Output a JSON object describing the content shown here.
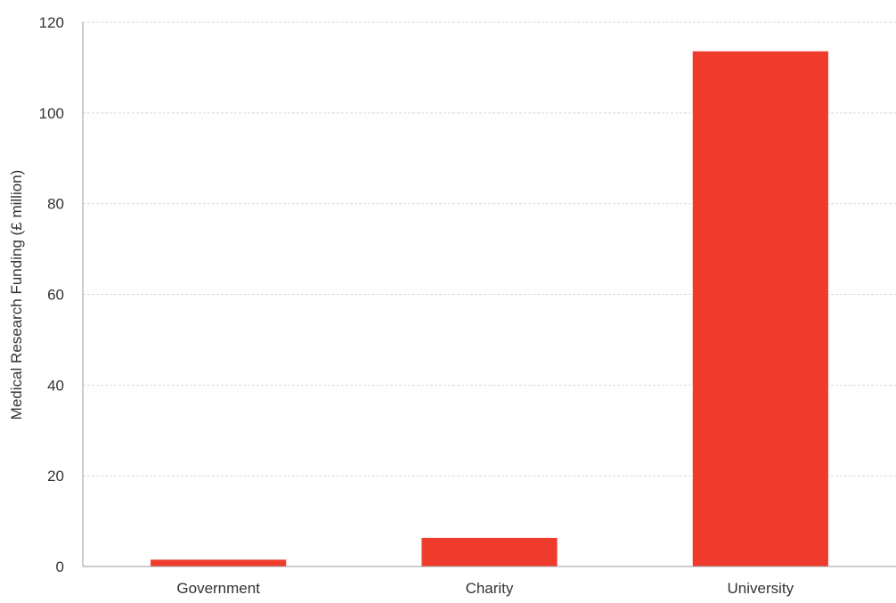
{
  "chart_data": {
    "type": "bar",
    "categories": [
      "Government",
      "Charity",
      "University"
    ],
    "values": [
      1.5,
      6.3,
      113.6
    ],
    "title": "",
    "xlabel": "",
    "ylabel": "Medical Research Funding (£ million)",
    "ylim": [
      0,
      120
    ],
    "yticks": [
      0,
      20,
      40,
      60,
      80,
      100,
      120
    ],
    "grid": true,
    "legend": "none",
    "colors": {
      "bar": "#ef3b2c",
      "grid": "#d9d9d9",
      "axis": "#999999",
      "text": "#333333"
    }
  }
}
